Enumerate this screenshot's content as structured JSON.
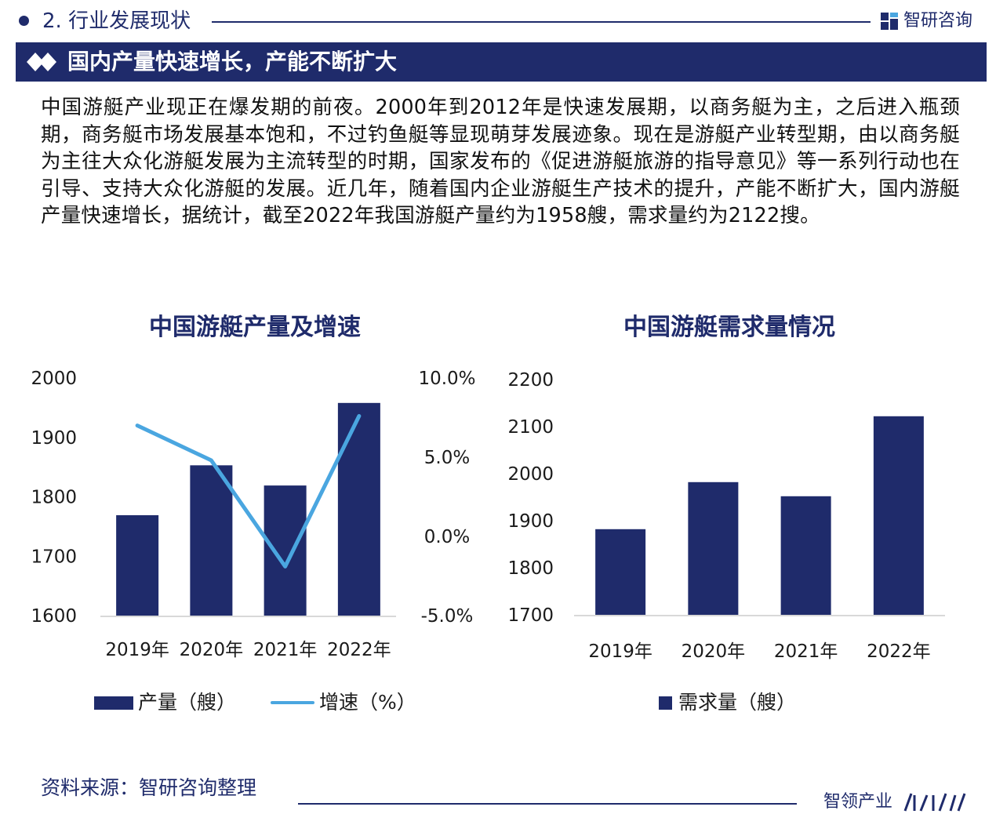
{
  "header": {
    "section_title": "2. 行业发展现状",
    "brand_name": "智研咨询"
  },
  "banner": {
    "title": "国内产量快速增长，产能不断扩大"
  },
  "intro": {
    "text": "中国游艇产业现正在爆发期的前夜。2000年到2012年是快速发展期，以商务艇为主，之后进入瓶颈期，商务艇市场发展基本饱和，不过钓鱼艇等显现萌芽发展迹象。现在是游艇产业转型期，由以商务艇为主往大众化游艇发展为主流转型的时期，国家发布的《促进游艇旅游的指导意见》等一系列行动也在引导、支持大众化游艇的发展。近几年，随着国内企业游艇生产技术的提升，产能不断扩大，国内游艇产量快速增长，据统计，截至2022年我国游艇产量约为1958艘，需求量约为2122搜。"
  },
  "chart_data": [
    {
      "type": "bar",
      "title": "中国游艇产量及增速",
      "categories": [
        "2019年",
        "2020年",
        "2021年",
        "2022年"
      ],
      "series": [
        {
          "name": "产量（艘）",
          "type": "bar",
          "axis": "left",
          "values": [
            1769,
            1853,
            1819,
            1958
          ]
        },
        {
          "name": "增速（%）",
          "type": "line",
          "axis": "right",
          "values": [
            7.0,
            4.8,
            -1.9,
            7.6
          ]
        }
      ],
      "y_left": {
        "ticks": [
          "1600",
          "1700",
          "1800",
          "1900",
          "2000"
        ],
        "min": 1600,
        "max": 2000
      },
      "y_right": {
        "ticks": [
          "-5.0%",
          "0.0%",
          "5.0%",
          "10.0%"
        ],
        "min": -5,
        "max": 10
      },
      "colors": {
        "bar": "#1f2b6b",
        "line": "#4aa6e0"
      },
      "legend": "bottom"
    },
    {
      "type": "bar",
      "title": "中国游艇需求量情况",
      "categories": [
        "2019年",
        "2020年",
        "2021年",
        "2022年"
      ],
      "series": [
        {
          "name": "需求量（艘）",
          "values": [
            1882,
            1982,
            1952,
            2122
          ]
        }
      ],
      "y_left": {
        "ticks": [
          "1700",
          "1800",
          "1900",
          "2000",
          "2100",
          "2200"
        ],
        "min": 1700,
        "max": 2200
      },
      "colors": {
        "bar": "#1f2b6b"
      },
      "legend": "bottom"
    }
  ],
  "footer": {
    "source": "资料来源：智研咨询整理",
    "brand": "智领产业"
  }
}
